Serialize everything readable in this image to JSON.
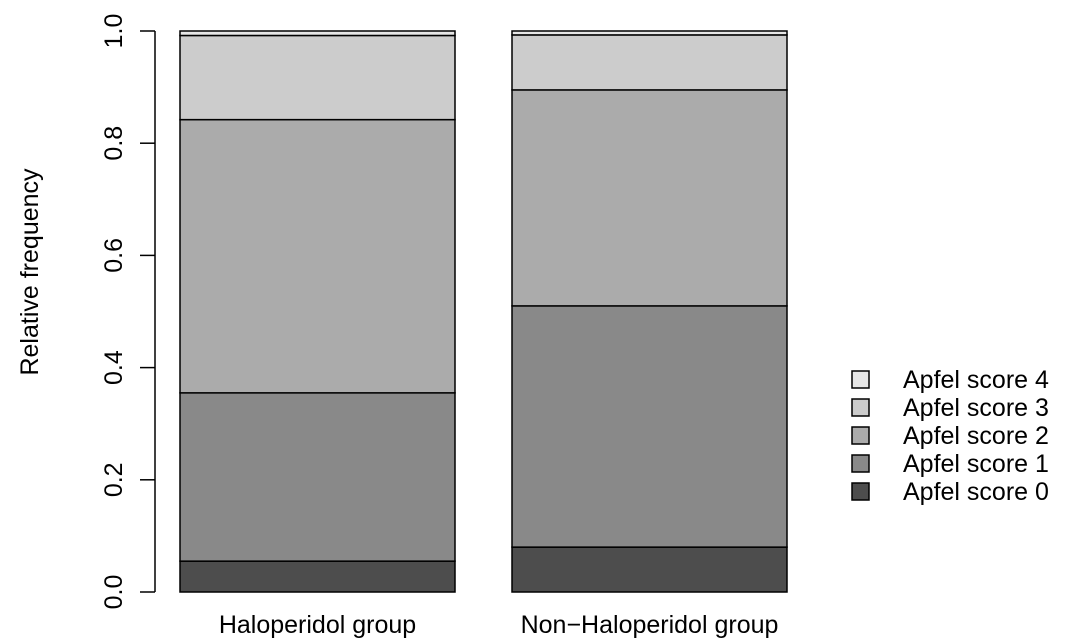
{
  "chart_data": {
    "type": "bar",
    "stacked": true,
    "title": "",
    "xlabel": "",
    "ylabel": "Relative frequency",
    "ylim": [
      0,
      1
    ],
    "y_ticks": [
      "0.0",
      "0.2",
      "0.4",
      "0.6",
      "0.8",
      "1.0"
    ],
    "categories": [
      "Haloperidol group",
      "Non−Haloperidol group"
    ],
    "series": [
      {
        "name": "Apfel score 0",
        "color": "#4d4d4d",
        "values": [
          0.055,
          0.08
        ]
      },
      {
        "name": "Apfel score 1",
        "color": "#898989",
        "values": [
          0.3,
          0.43
        ]
      },
      {
        "name": "Apfel score 2",
        "color": "#ababab",
        "values": [
          0.487,
          0.385
        ]
      },
      {
        "name": "Apfel score 3",
        "color": "#cccccc",
        "values": [
          0.15,
          0.098
        ]
      },
      {
        "name": "Apfel score 4",
        "color": "#e6e6e6",
        "values": [
          0.008,
          0.007
        ]
      }
    ],
    "legend_position": "right",
    "legend_order": [
      "Apfel score 4",
      "Apfel score 3",
      "Apfel score 2",
      "Apfel score 1",
      "Apfel score 0"
    ],
    "grid": false
  }
}
